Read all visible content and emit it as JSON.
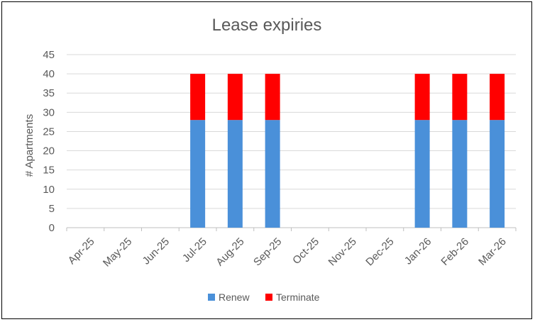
{
  "chart_data": {
    "type": "bar",
    "stacked": true,
    "title": "Lease expiries",
    "xlabel": "",
    "ylabel": "# Apartments",
    "categories": [
      "Apr-25",
      "May-25",
      "Jun-25",
      "Jul-25",
      "Aug-25",
      "Sep-25",
      "Oct-25",
      "Nov-25",
      "Dec-25",
      "Jan-26",
      "Feb-26",
      "Mar-26"
    ],
    "series": [
      {
        "name": "Renew",
        "color": "#4a90d9",
        "values": [
          0,
          0,
          0,
          28,
          28,
          28,
          0,
          0,
          0,
          28,
          28,
          28
        ]
      },
      {
        "name": "Terminate",
        "color": "#ff0000",
        "values": [
          0,
          0,
          0,
          12,
          12,
          12,
          0,
          0,
          0,
          12,
          12,
          12
        ]
      }
    ],
    "ylim": [
      0,
      45
    ],
    "yticks": [
      0,
      5,
      10,
      15,
      20,
      25,
      30,
      35,
      40,
      45
    ],
    "grid": true,
    "legend": "bottom"
  }
}
